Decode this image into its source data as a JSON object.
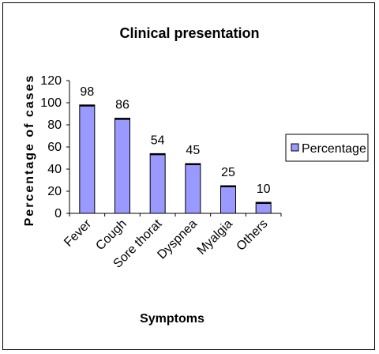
{
  "chart_data": {
    "type": "bar",
    "title": "Clinical presentation",
    "xlabel": "Symptoms",
    "ylabel": "Percentage of cases",
    "categories": [
      "Fever",
      "Cough",
      "Sore thorat",
      "Dyspnea",
      "Myalgia",
      "Others"
    ],
    "series": [
      {
        "name": "Percentage",
        "values": [
          98,
          86,
          54,
          45,
          25,
          10
        ]
      }
    ],
    "ylim": [
      0,
      120
    ],
    "yticks": [
      0,
      20,
      40,
      60,
      80,
      100,
      120
    ],
    "data_labels": [
      "98",
      "86",
      "54",
      "45",
      "25",
      "10"
    ],
    "grid": false,
    "legend_position": "right",
    "colors": {
      "bar_fill": "#9999ff",
      "bar_stroke": "#000000",
      "background": "#ffffff"
    }
  }
}
